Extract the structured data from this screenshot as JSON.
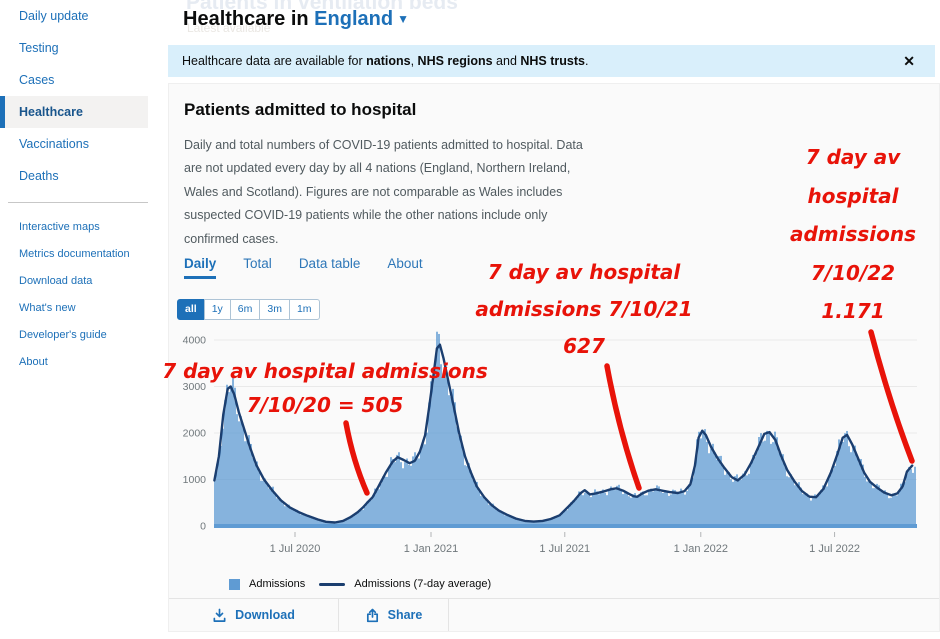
{
  "sidebar": {
    "primary": [
      {
        "label": "Daily update",
        "active": false
      },
      {
        "label": "Testing",
        "active": false
      },
      {
        "label": "Cases",
        "active": false
      },
      {
        "label": "Healthcare",
        "active": true
      },
      {
        "label": "Vaccinations",
        "active": false
      },
      {
        "label": "Deaths",
        "active": false
      }
    ],
    "secondary": [
      {
        "label": "Interactive maps"
      },
      {
        "label": "Metrics documentation"
      },
      {
        "label": "Download data"
      },
      {
        "label": "What's new"
      },
      {
        "label": "Developer's guide"
      },
      {
        "label": "About"
      }
    ]
  },
  "header": {
    "ghost_title": "Patients in ventilation beds",
    "ghost_subtitle": "Latest available",
    "title_prefix": "Healthcare in",
    "location": "England",
    "dropdown_glyph": "▼"
  },
  "banner": {
    "text_prefix": "Healthcare data are available for ",
    "bold_nations": "nations",
    "sep1": ", ",
    "bold_regions": "NHS regions",
    "sep2": " and ",
    "bold_trusts": "NHS trusts",
    "suffix": ".",
    "close_glyph": "✕"
  },
  "card": {
    "title": "Patients admitted to hospital",
    "description": "Daily and total numbers of COVID-19 patients admitted to hospital. Data are not updated every day by all 4 nations (England, Northern Ireland, Wales and Scotland). Figures are not comparable as Wales includes suspected COVID-19 patients while the other nations include only confirmed cases.",
    "tabs": [
      {
        "label": "Daily",
        "active": true
      },
      {
        "label": "Total",
        "active": false
      },
      {
        "label": "Data table",
        "active": false
      },
      {
        "label": "About",
        "active": false
      }
    ],
    "range_buttons": [
      {
        "label": "all",
        "active": true
      },
      {
        "label": "1y",
        "active": false
      },
      {
        "label": "6m",
        "active": false
      },
      {
        "label": "3m",
        "active": false
      },
      {
        "label": "1m",
        "active": false
      }
    ],
    "legend": [
      {
        "swatch": "square",
        "label": "Admissions"
      },
      {
        "swatch": "line",
        "label": "Admissions (7-day average)"
      }
    ],
    "footer_buttons": [
      {
        "icon": "download-icon",
        "label": "Download"
      },
      {
        "icon": "share-icon",
        "label": "Share"
      }
    ]
  },
  "annotations": {
    "color": "#e81309",
    "a2020": {
      "line1": "7 day av hospital admissions",
      "line2": "7/10/20 = 505"
    },
    "a2021": {
      "line1": "7 day av hospital",
      "line2": "admissions 7/10/21",
      "line3": "627"
    },
    "a2022": {
      "lines": [
        "7 day av",
        "hospital",
        "admissions",
        "7/10/22",
        "1.171"
      ]
    }
  },
  "chart_data": {
    "type": "bar",
    "subtype": "daily bars with 7-day average line",
    "title": "Patients admitted to hospital (England)",
    "xlabel": "",
    "ylabel": "",
    "ylim": [
      0,
      4000
    ],
    "y_ticks": [
      0,
      1000,
      2000,
      3000,
      4000
    ],
    "x_ticks": [
      {
        "label": "1 Jul 2020",
        "date": "2020-07-01"
      },
      {
        "label": "1 Jan 2021",
        "date": "2021-01-01"
      },
      {
        "label": "1 Jul 2021",
        "date": "2021-07-01"
      },
      {
        "label": "1 Jan 2022",
        "date": "2022-01-01"
      },
      {
        "label": "1 Jul 2022",
        "date": "2022-07-01"
      }
    ],
    "grid": true,
    "legend_position": "bottom",
    "annotated_values": [
      {
        "date": "2020-10-07",
        "seven_day_average": 505
      },
      {
        "date": "2021-10-07",
        "seven_day_average": 627
      },
      {
        "date": "2022-10-07",
        "seven_day_average": 1171
      }
    ],
    "series": [
      {
        "name": "Admissions",
        "style": "bars",
        "color": "#5f9bd3",
        "note": "daily admissions bars closely tracking the 7-day average"
      },
      {
        "name": "Admissions (7-day average)",
        "style": "line",
        "color": "#1b3e6f",
        "points": [
          [
            "2020-03-14",
            980
          ],
          [
            "2020-03-20",
            1500
          ],
          [
            "2020-03-26",
            2400
          ],
          [
            "2020-04-01",
            2950
          ],
          [
            "2020-04-05",
            3000
          ],
          [
            "2020-04-10",
            2820
          ],
          [
            "2020-04-16",
            2450
          ],
          [
            "2020-04-24",
            2050
          ],
          [
            "2020-05-01",
            1700
          ],
          [
            "2020-05-10",
            1300
          ],
          [
            "2020-05-20",
            1000
          ],
          [
            "2020-06-01",
            750
          ],
          [
            "2020-06-12",
            550
          ],
          [
            "2020-06-24",
            400
          ],
          [
            "2020-07-06",
            300
          ],
          [
            "2020-07-18",
            220
          ],
          [
            "2020-08-01",
            140
          ],
          [
            "2020-08-12",
            90
          ],
          [
            "2020-08-24",
            75
          ],
          [
            "2020-09-04",
            110
          ],
          [
            "2020-09-14",
            190
          ],
          [
            "2020-09-24",
            300
          ],
          [
            "2020-10-01",
            400
          ],
          [
            "2020-10-07",
            505
          ],
          [
            "2020-10-14",
            620
          ],
          [
            "2020-10-22",
            850
          ],
          [
            "2020-11-01",
            1150
          ],
          [
            "2020-11-10",
            1380
          ],
          [
            "2020-11-17",
            1480
          ],
          [
            "2020-11-25",
            1420
          ],
          [
            "2020-12-03",
            1350
          ],
          [
            "2020-12-10",
            1400
          ],
          [
            "2020-12-17",
            1600
          ],
          [
            "2020-12-24",
            1950
          ],
          [
            "2020-12-29",
            2500
          ],
          [
            "2021-01-04",
            3200
          ],
          [
            "2021-01-09",
            3820
          ],
          [
            "2021-01-13",
            3900
          ],
          [
            "2021-01-18",
            3600
          ],
          [
            "2021-01-24",
            3150
          ],
          [
            "2021-02-01",
            2550
          ],
          [
            "2021-02-08",
            2000
          ],
          [
            "2021-02-16",
            1500
          ],
          [
            "2021-02-24",
            1150
          ],
          [
            "2021-03-04",
            850
          ],
          [
            "2021-03-14",
            620
          ],
          [
            "2021-03-24",
            450
          ],
          [
            "2021-04-03",
            330
          ],
          [
            "2021-04-14",
            240
          ],
          [
            "2021-04-26",
            160
          ],
          [
            "2021-05-08",
            110
          ],
          [
            "2021-05-20",
            95
          ],
          [
            "2021-06-01",
            110
          ],
          [
            "2021-06-12",
            150
          ],
          [
            "2021-06-24",
            230
          ],
          [
            "2021-07-06",
            420
          ],
          [
            "2021-07-14",
            550
          ],
          [
            "2021-07-22",
            700
          ],
          [
            "2021-07-28",
            770
          ],
          [
            "2021-08-04",
            680
          ],
          [
            "2021-08-12",
            700
          ],
          [
            "2021-08-22",
            740
          ],
          [
            "2021-09-01",
            790
          ],
          [
            "2021-09-09",
            810
          ],
          [
            "2021-09-18",
            760
          ],
          [
            "2021-09-26",
            690
          ],
          [
            "2021-10-02",
            640
          ],
          [
            "2021-10-07",
            627
          ],
          [
            "2021-10-14",
            700
          ],
          [
            "2021-10-22",
            760
          ],
          [
            "2021-11-01",
            790
          ],
          [
            "2021-11-10",
            760
          ],
          [
            "2021-11-20",
            730
          ],
          [
            "2021-12-01",
            710
          ],
          [
            "2021-12-10",
            750
          ],
          [
            "2021-12-18",
            900
          ],
          [
            "2021-12-24",
            1300
          ],
          [
            "2021-12-29",
            1900
          ],
          [
            "2022-01-03",
            2050
          ],
          [
            "2022-01-08",
            1950
          ],
          [
            "2022-01-15",
            1700
          ],
          [
            "2022-01-24",
            1450
          ],
          [
            "2022-02-02",
            1250
          ],
          [
            "2022-02-12",
            1050
          ],
          [
            "2022-02-20",
            980
          ],
          [
            "2022-03-01",
            1100
          ],
          [
            "2022-03-10",
            1350
          ],
          [
            "2022-03-20",
            1700
          ],
          [
            "2022-03-28",
            1980
          ],
          [
            "2022-04-04",
            2020
          ],
          [
            "2022-04-12",
            1850
          ],
          [
            "2022-04-20",
            1500
          ],
          [
            "2022-04-28",
            1200
          ],
          [
            "2022-05-08",
            950
          ],
          [
            "2022-05-18",
            750
          ],
          [
            "2022-05-28",
            630
          ],
          [
            "2022-06-06",
            620
          ],
          [
            "2022-06-16",
            800
          ],
          [
            "2022-06-26",
            1150
          ],
          [
            "2022-07-05",
            1550
          ],
          [
            "2022-07-12",
            1900
          ],
          [
            "2022-07-18",
            1960
          ],
          [
            "2022-07-25",
            1750
          ],
          [
            "2022-08-02",
            1450
          ],
          [
            "2022-08-10",
            1150
          ],
          [
            "2022-08-18",
            950
          ],
          [
            "2022-08-28",
            820
          ],
          [
            "2022-09-06",
            720
          ],
          [
            "2022-09-16",
            660
          ],
          [
            "2022-09-24",
            700
          ],
          [
            "2022-10-01",
            850
          ],
          [
            "2022-10-07",
            1171
          ],
          [
            "2022-10-14",
            1300
          ]
        ]
      }
    ]
  }
}
